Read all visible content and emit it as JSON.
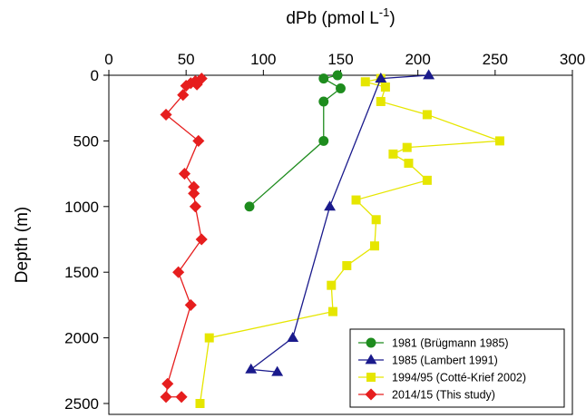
{
  "chart_data": {
    "type": "scatter",
    "title": "",
    "xlabel": "dPb (pmol L",
    "xlabel_superscript": "-1",
    "xlabel_close": ")",
    "ylabel": "Depth (m)",
    "x_axis_position": "top",
    "y_axis_inverted": true,
    "xlim": [
      0,
      300
    ],
    "ylim": [
      0,
      2600
    ],
    "xticks": [
      0,
      50,
      100,
      150,
      200,
      250,
      300
    ],
    "yticks": [
      0,
      500,
      1000,
      1500,
      2000,
      2500
    ],
    "grid": false,
    "legend_position": "bottom-right",
    "series": [
      {
        "name": "1981 (Brügmann 1985)",
        "color": "#1e8c1e",
        "marker": "circle",
        "points": [
          [
            148,
            0
          ],
          [
            139,
            25
          ],
          [
            150,
            100
          ],
          [
            139,
            200
          ],
          [
            139,
            500
          ],
          [
            91,
            1000
          ]
        ]
      },
      {
        "name": "1985 (Lambert 1991)",
        "color": "#1a1a8c",
        "marker": "triangle",
        "points": [
          [
            207,
            0
          ],
          [
            176,
            25
          ],
          [
            143,
            1000
          ],
          [
            119,
            2000
          ],
          [
            92,
            2240
          ],
          [
            109,
            2260
          ]
        ]
      },
      {
        "name": "1994/95 (Cotté-Krief 2002)",
        "color": "#e6e600",
        "marker": "square",
        "points": [
          [
            176,
            25
          ],
          [
            166,
            50
          ],
          [
            179,
            90
          ],
          [
            176,
            200
          ],
          [
            206,
            300
          ],
          [
            253,
            500
          ],
          [
            193,
            550
          ],
          [
            184,
            600
          ],
          [
            194,
            670
          ],
          [
            206,
            800
          ],
          [
            160,
            950
          ],
          [
            173,
            1100
          ],
          [
            172,
            1300
          ],
          [
            154,
            1450
          ],
          [
            144,
            1600
          ],
          [
            145,
            1800
          ],
          [
            65,
            2000
          ],
          [
            59,
            2500
          ]
        ]
      },
      {
        "name": "2014/15 (This study)",
        "color": "#e61e1e",
        "marker": "diamond",
        "points": [
          [
            60,
            25
          ],
          [
            56,
            45
          ],
          [
            53,
            60
          ],
          [
            57,
            70
          ],
          [
            50,
            80
          ],
          [
            48,
            150
          ],
          [
            37,
            300
          ],
          [
            58,
            500
          ],
          [
            49,
            750
          ],
          [
            55,
            850
          ],
          [
            55,
            900
          ],
          [
            56,
            1000
          ],
          [
            60,
            1250
          ],
          [
            45,
            1500
          ],
          [
            53,
            1750
          ],
          [
            38,
            2350
          ],
          [
            37,
            2450
          ],
          [
            47,
            2450
          ]
        ]
      }
    ]
  }
}
